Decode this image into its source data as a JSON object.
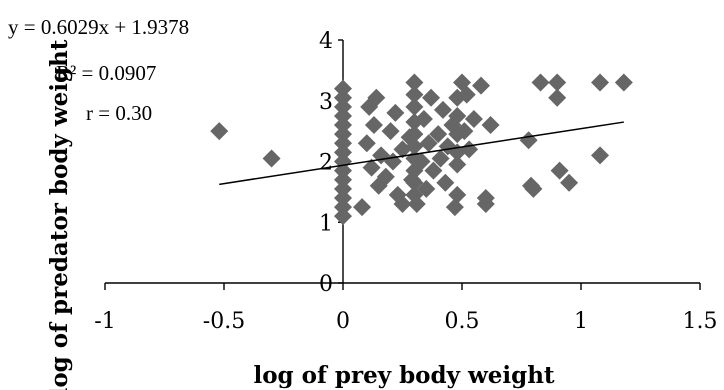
{
  "chart_data": {
    "type": "scatter",
    "xlabel": "log of prey body weight",
    "ylabel": "log of predator body weight",
    "xlim": [
      -1,
      1.5
    ],
    "ylim": [
      0,
      4
    ],
    "xticks": [
      "-1",
      "-0.5",
      "0",
      "0.5",
      "1",
      "1.5"
    ],
    "yticks": [
      "0",
      "1",
      "2",
      "3",
      "4"
    ],
    "grid": false,
    "marker_color": "#666666",
    "trendline": {
      "slope": 0.6029,
      "intercept": 1.9378,
      "x_range": [
        -0.52,
        1.18
      ]
    },
    "annotations": {
      "equation": "y = 0.6029x + 1.9378",
      "r_squared": "R² = 0.0907",
      "r": "r = 0.30"
    },
    "points": [
      [
        -0.52,
        2.5
      ],
      [
        -0.3,
        2.05
      ],
      [
        0,
        1.1
      ],
      [
        0,
        1.25
      ],
      [
        0,
        1.4
      ],
      [
        0,
        1.55
      ],
      [
        0,
        1.7
      ],
      [
        0,
        1.85
      ],
      [
        0,
        2.0
      ],
      [
        0,
        2.15
      ],
      [
        0,
        2.3
      ],
      [
        0,
        2.45
      ],
      [
        0,
        2.6
      ],
      [
        0,
        2.75
      ],
      [
        0,
        2.9
      ],
      [
        0,
        3.05
      ],
      [
        0,
        3.2
      ],
      [
        0.08,
        1.25
      ],
      [
        0.1,
        2.3
      ],
      [
        0.11,
        2.9
      ],
      [
        0.12,
        1.9
      ],
      [
        0.13,
        2.6
      ],
      [
        0.14,
        3.05
      ],
      [
        0.15,
        1.6
      ],
      [
        0.16,
        2.1
      ],
      [
        0.18,
        1.75
      ],
      [
        0.2,
        2.5
      ],
      [
        0.21,
        2.0
      ],
      [
        0.22,
        2.8
      ],
      [
        0.23,
        1.45
      ],
      [
        0.25,
        1.3
      ],
      [
        0.25,
        2.2
      ],
      [
        0.28,
        2.4
      ],
      [
        0.29,
        1.7
      ],
      [
        0.3,
        3.3
      ],
      [
        0.3,
        3.1
      ],
      [
        0.3,
        2.9
      ],
      [
        0.3,
        2.65
      ],
      [
        0.3,
        2.45
      ],
      [
        0.3,
        2.25
      ],
      [
        0.3,
        2.05
      ],
      [
        0.3,
        1.85
      ],
      [
        0.3,
        1.65
      ],
      [
        0.3,
        1.45
      ],
      [
        0.31,
        1.3
      ],
      [
        0.33,
        2.0
      ],
      [
        0.34,
        2.7
      ],
      [
        0.35,
        1.55
      ],
      [
        0.36,
        2.3
      ],
      [
        0.37,
        3.05
      ],
      [
        0.38,
        1.85
      ],
      [
        0.4,
        2.45
      ],
      [
        0.41,
        2.05
      ],
      [
        0.42,
        2.85
      ],
      [
        0.43,
        1.65
      ],
      [
        0.44,
        2.25
      ],
      [
        0.46,
        2.6
      ],
      [
        0.47,
        1.25
      ],
      [
        0.48,
        3.05
      ],
      [
        0.48,
        2.75
      ],
      [
        0.48,
        2.45
      ],
      [
        0.48,
        2.15
      ],
      [
        0.48,
        1.95
      ],
      [
        0.48,
        1.45
      ],
      [
        0.5,
        3.3
      ],
      [
        0.51,
        2.5
      ],
      [
        0.52,
        3.1
      ],
      [
        0.53,
        2.2
      ],
      [
        0.55,
        2.7
      ],
      [
        0.58,
        3.25
      ],
      [
        0.6,
        1.4
      ],
      [
        0.6,
        1.3
      ],
      [
        0.62,
        2.6
      ],
      [
        0.78,
        2.35
      ],
      [
        0.79,
        1.6
      ],
      [
        0.8,
        1.55
      ],
      [
        0.83,
        3.3
      ],
      [
        0.9,
        3.05
      ],
      [
        0.9,
        3.3
      ],
      [
        0.91,
        1.85
      ],
      [
        0.95,
        1.65
      ],
      [
        1.08,
        3.3
      ],
      [
        1.08,
        2.1
      ],
      [
        1.18,
        3.3
      ]
    ]
  }
}
